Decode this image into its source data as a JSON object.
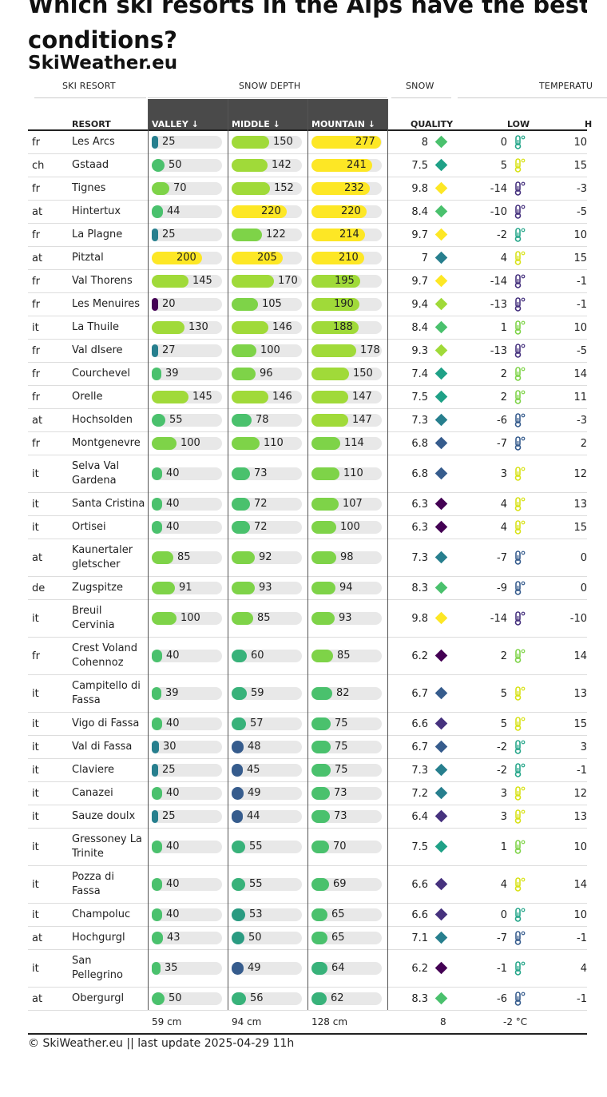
{
  "title_lines": [
    "Which ski resorts in the Alps have the best ski",
    "conditions?"
  ],
  "subtitle": "SkiWeather.eu",
  "group_headers": {
    "resort": "SKI RESORT",
    "depth": "SNOW DEPTH",
    "snow": "SNOW",
    "temp": "TEMPERATU"
  },
  "col_headers": {
    "resort": "RESORT",
    "valley": "VALLEY ↓",
    "middle": "MIDDLE ↓",
    "mountain": "MOUNTAIN ↓",
    "quality": "QUALITY",
    "low": "LOW",
    "high": "H"
  },
  "rows": [
    {
      "cc": "fr",
      "name": "Les Arcs",
      "valley": 25,
      "middle": 150,
      "mountain": 277,
      "quality": "8",
      "low": "0",
      "high": "10"
    },
    {
      "cc": "ch",
      "name": "Gstaad",
      "valley": 50,
      "middle": 142,
      "mountain": 241,
      "quality": "7.5",
      "low": "5",
      "high": "15"
    },
    {
      "cc": "fr",
      "name": "Tignes",
      "valley": 70,
      "middle": 152,
      "mountain": 232,
      "quality": "9.8",
      "low": "-14",
      "high": "-3"
    },
    {
      "cc": "at",
      "name": "Hintertux",
      "valley": 44,
      "middle": 220,
      "mountain": 220,
      "quality": "8.4",
      "low": "-10",
      "high": "-5"
    },
    {
      "cc": "fr",
      "name": "La Plagne",
      "valley": 25,
      "middle": 122,
      "mountain": 214,
      "quality": "9.7",
      "low": "-2",
      "high": "10"
    },
    {
      "cc": "at",
      "name": "Pitztal",
      "valley": 200,
      "middle": 205,
      "mountain": 210,
      "quality": "7",
      "low": "4",
      "high": "15"
    },
    {
      "cc": "fr",
      "name": "Val Thorens",
      "valley": 145,
      "middle": 170,
      "mountain": 195,
      "quality": "9.7",
      "low": "-14",
      "high": "-1"
    },
    {
      "cc": "fr",
      "name": "Les Menuires",
      "valley": 20,
      "middle": 105,
      "mountain": 190,
      "quality": "9.4",
      "low": "-13",
      "high": "-1"
    },
    {
      "cc": "it",
      "name": "La Thuile",
      "valley": 130,
      "middle": 146,
      "mountain": 188,
      "quality": "8.4",
      "low": "1",
      "high": "10"
    },
    {
      "cc": "fr",
      "name": "Val dIsere",
      "valley": 27,
      "middle": 100,
      "mountain": 178,
      "quality": "9.3",
      "low": "-13",
      "high": "-5"
    },
    {
      "cc": "fr",
      "name": "Courchevel",
      "valley": 39,
      "middle": 96,
      "mountain": 150,
      "quality": "7.4",
      "low": "2",
      "high": "14"
    },
    {
      "cc": "fr",
      "name": "Orelle",
      "valley": 145,
      "middle": 146,
      "mountain": 147,
      "quality": "7.5",
      "low": "2",
      "high": "11"
    },
    {
      "cc": "at",
      "name": "Hochsolden",
      "valley": 55,
      "middle": 78,
      "mountain": 147,
      "quality": "7.3",
      "low": "-6",
      "high": "-3"
    },
    {
      "cc": "fr",
      "name": "Montgenevre",
      "valley": 100,
      "middle": 110,
      "mountain": 114,
      "quality": "6.8",
      "low": "-7",
      "high": "2"
    },
    {
      "cc": "it",
      "name": "Selva Val Gardena",
      "valley": 40,
      "middle": 73,
      "mountain": 110,
      "quality": "6.8",
      "low": "3",
      "high": "12"
    },
    {
      "cc": "it",
      "name": "Santa Cristina",
      "valley": 40,
      "middle": 72,
      "mountain": 107,
      "quality": "6.3",
      "low": "4",
      "high": "13"
    },
    {
      "cc": "it",
      "name": "Ortisei",
      "valley": 40,
      "middle": 72,
      "mountain": 100,
      "quality": "6.3",
      "low": "4",
      "high": "15"
    },
    {
      "cc": "at",
      "name": "Kaunertaler gletscher",
      "valley": 85,
      "middle": 92,
      "mountain": 98,
      "quality": "7.3",
      "low": "-7",
      "high": "0"
    },
    {
      "cc": "de",
      "name": "Zugspitze",
      "valley": 91,
      "middle": 93,
      "mountain": 94,
      "quality": "8.3",
      "low": "-9",
      "high": "0"
    },
    {
      "cc": "it",
      "name": "Breuil Cervinia",
      "valley": 100,
      "middle": 85,
      "mountain": 93,
      "quality": "9.8",
      "low": "-14",
      "high": "-10"
    },
    {
      "cc": "fr",
      "name": "Crest Voland Cohennoz",
      "valley": 40,
      "middle": 60,
      "mountain": 85,
      "quality": "6.2",
      "low": "2",
      "high": "14"
    },
    {
      "cc": "it",
      "name": "Campitello di Fassa",
      "valley": 39,
      "middle": 59,
      "mountain": 82,
      "quality": "6.7",
      "low": "5",
      "high": "13"
    },
    {
      "cc": "it",
      "name": "Vigo di Fassa",
      "valley": 40,
      "middle": 57,
      "mountain": 75,
      "quality": "6.6",
      "low": "5",
      "high": "15"
    },
    {
      "cc": "it",
      "name": "Val di Fassa",
      "valley": 30,
      "middle": 48,
      "mountain": 75,
      "quality": "6.7",
      "low": "-2",
      "high": "3"
    },
    {
      "cc": "it",
      "name": "Claviere",
      "valley": 25,
      "middle": 45,
      "mountain": 75,
      "quality": "7.3",
      "low": "-2",
      "high": "-1"
    },
    {
      "cc": "it",
      "name": "Canazei",
      "valley": 40,
      "middle": 49,
      "mountain": 73,
      "quality": "7.2",
      "low": "3",
      "high": "12"
    },
    {
      "cc": "it",
      "name": "Sauze doulx",
      "valley": 25,
      "middle": 44,
      "mountain": 73,
      "quality": "6.4",
      "low": "3",
      "high": "13"
    },
    {
      "cc": "it",
      "name": "Gressoney La Trinite",
      "valley": 40,
      "middle": 55,
      "mountain": 70,
      "quality": "7.5",
      "low": "1",
      "high": "10"
    },
    {
      "cc": "it",
      "name": "Pozza di Fassa",
      "valley": 40,
      "middle": 55,
      "mountain": 69,
      "quality": "6.6",
      "low": "4",
      "high": "14"
    },
    {
      "cc": "it",
      "name": "Champoluc",
      "valley": 40,
      "middle": 53,
      "mountain": 65,
      "quality": "6.6",
      "low": "0",
      "high": "10"
    },
    {
      "cc": "at",
      "name": "Hochgurgl",
      "valley": 43,
      "middle": 50,
      "mountain": 65,
      "quality": "7.1",
      "low": "-7",
      "high": "-1"
    },
    {
      "cc": "it",
      "name": "San Pellegrino",
      "valley": 35,
      "middle": 49,
      "mountain": 64,
      "quality": "6.2",
      "low": "-1",
      "high": "4"
    },
    {
      "cc": "at",
      "name": "Obergurgl",
      "valley": 50,
      "middle": 56,
      "mountain": 62,
      "quality": "8.3",
      "low": "-6",
      "high": "-1"
    }
  ],
  "footer": {
    "valley": "59 cm",
    "middle": "94 cm",
    "mountain": "128 cm",
    "quality": "8",
    "low": "-2 °C"
  },
  "credit": "© SkiWeather.eu || last update 2025-04-29 11h",
  "colors": {
    "yellow": "#fde725",
    "lime": "#a0da39",
    "green": "#4ac16d",
    "teal": "#1fa187",
    "blue": "#277f8e",
    "indigo": "#365c8d",
    "purple": "#46327e",
    "dark": "#440154"
  }
}
